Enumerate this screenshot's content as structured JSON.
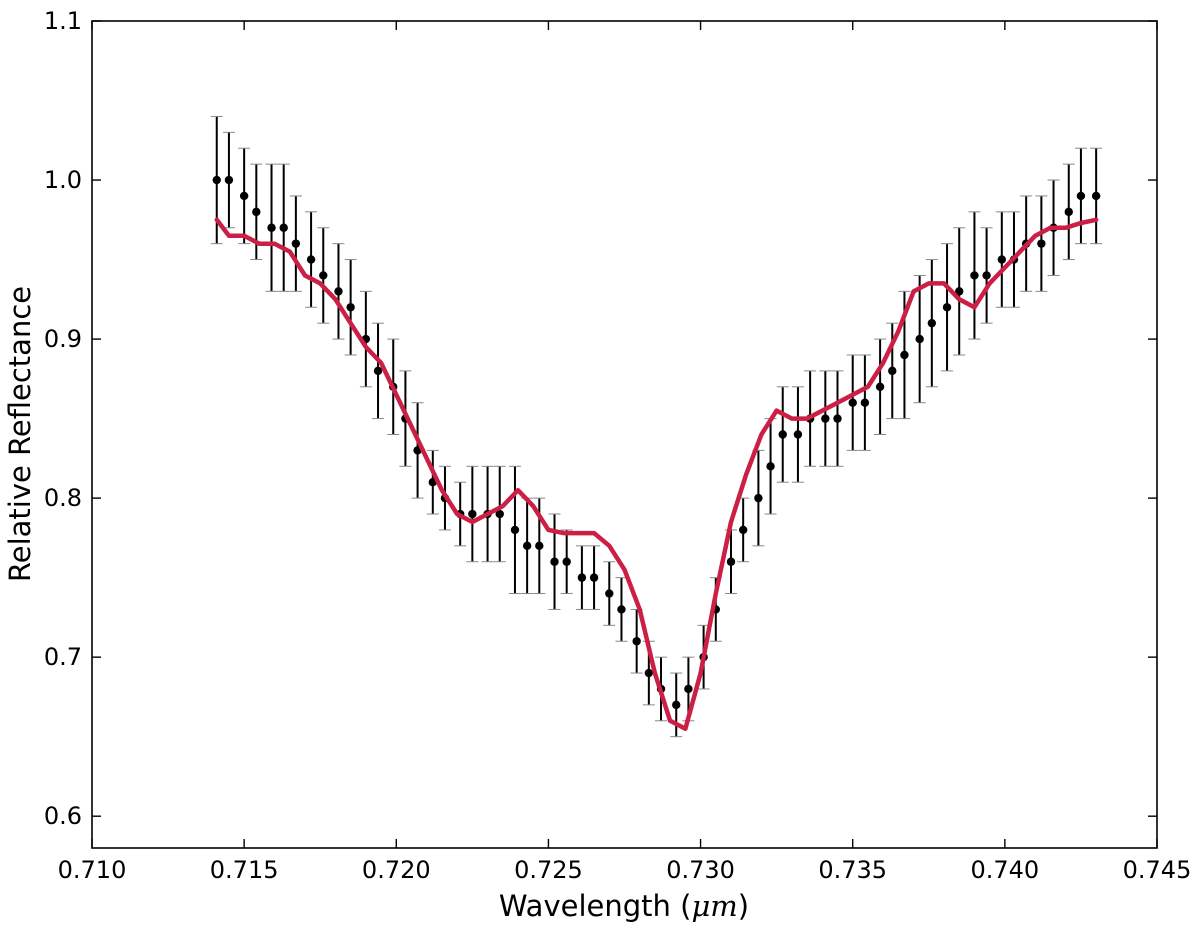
{
  "chart_data": {
    "type": "scatter",
    "title": "",
    "xlabel": "Wavelength (",
    "xlabel_unit": "μm",
    "xlabel_close": ")",
    "ylabel": "Relative Reflectance",
    "xlim": [
      0.71,
      0.745
    ],
    "ylim": [
      0.58,
      1.1
    ],
    "x_ticks": [
      0.71,
      0.715,
      0.72,
      0.725,
      0.73,
      0.735,
      0.74,
      0.745
    ],
    "x_tick_labels": [
      "0.710",
      "0.715",
      "0.720",
      "0.725",
      "0.730",
      "0.735",
      "0.740",
      "0.745"
    ],
    "y_ticks": [
      0.6,
      0.7,
      0.8,
      0.9,
      1.0,
      1.1
    ],
    "y_tick_labels": [
      "0.6",
      "0.7",
      "0.8",
      "0.9",
      "1.0",
      "1.1"
    ],
    "grid": false,
    "legend": "none",
    "series": [
      {
        "kind": "points-with-error-bars",
        "color": "#000000",
        "x": [
          0.7141,
          0.7145,
          0.715,
          0.7154,
          0.7159,
          0.7163,
          0.7167,
          0.7172,
          0.7176,
          0.7181,
          0.7185,
          0.719,
          0.7194,
          0.7199,
          0.7203,
          0.7207,
          0.7212,
          0.7216,
          0.7221,
          0.7225,
          0.723,
          0.7234,
          0.7239,
          0.7243,
          0.7247,
          0.7252,
          0.7256,
          0.7261,
          0.7265,
          0.727,
          0.7274,
          0.7279,
          0.7283,
          0.7287,
          0.7292,
          0.7296,
          0.7301,
          0.7305,
          0.731,
          0.7314,
          0.7319,
          0.7323,
          0.7327,
          0.7332,
          0.7336,
          0.7341,
          0.7345,
          0.735,
          0.7354,
          0.7359,
          0.7363,
          0.7367,
          0.7372,
          0.7376,
          0.7381,
          0.7385,
          0.739,
          0.7394,
          0.7399,
          0.7403,
          0.7407,
          0.7412,
          0.7416,
          0.7421,
          0.7425,
          0.743
        ],
        "y": [
          1.0,
          1.0,
          0.99,
          0.98,
          0.97,
          0.97,
          0.96,
          0.95,
          0.94,
          0.93,
          0.92,
          0.9,
          0.88,
          0.87,
          0.85,
          0.83,
          0.81,
          0.8,
          0.79,
          0.79,
          0.79,
          0.79,
          0.78,
          0.77,
          0.77,
          0.76,
          0.76,
          0.75,
          0.75,
          0.74,
          0.73,
          0.71,
          0.69,
          0.68,
          0.67,
          0.68,
          0.7,
          0.73,
          0.76,
          0.78,
          0.8,
          0.82,
          0.84,
          0.84,
          0.85,
          0.85,
          0.85,
          0.86,
          0.86,
          0.87,
          0.88,
          0.89,
          0.9,
          0.91,
          0.92,
          0.93,
          0.94,
          0.94,
          0.95,
          0.95,
          0.96,
          0.96,
          0.97,
          0.98,
          0.99,
          0.99
        ],
        "err": [
          0.04,
          0.03,
          0.03,
          0.03,
          0.04,
          0.04,
          0.03,
          0.03,
          0.03,
          0.03,
          0.03,
          0.03,
          0.03,
          0.03,
          0.03,
          0.03,
          0.02,
          0.02,
          0.02,
          0.03,
          0.03,
          0.03,
          0.04,
          0.03,
          0.03,
          0.03,
          0.02,
          0.02,
          0.02,
          0.02,
          0.02,
          0.02,
          0.02,
          0.02,
          0.02,
          0.02,
          0.02,
          0.02,
          0.02,
          0.02,
          0.03,
          0.03,
          0.03,
          0.03,
          0.03,
          0.03,
          0.03,
          0.03,
          0.03,
          0.03,
          0.03,
          0.04,
          0.04,
          0.04,
          0.04,
          0.04,
          0.04,
          0.03,
          0.03,
          0.03,
          0.03,
          0.03,
          0.03,
          0.03,
          0.03,
          0.03
        ]
      },
      {
        "kind": "model-line",
        "color": "#cc1f45",
        "x": [
          0.7141,
          0.7145,
          0.715,
          0.7155,
          0.716,
          0.7165,
          0.717,
          0.7175,
          0.718,
          0.7185,
          0.719,
          0.7195,
          0.72,
          0.7205,
          0.721,
          0.7215,
          0.722,
          0.7225,
          0.723,
          0.7235,
          0.724,
          0.7245,
          0.725,
          0.7255,
          0.726,
          0.7265,
          0.727,
          0.7275,
          0.728,
          0.7285,
          0.729,
          0.7295,
          0.73,
          0.7305,
          0.731,
          0.7315,
          0.732,
          0.7325,
          0.733,
          0.7335,
          0.734,
          0.7345,
          0.735,
          0.7355,
          0.736,
          0.7365,
          0.737,
          0.7375,
          0.738,
          0.7385,
          0.739,
          0.7395,
          0.74,
          0.7405,
          0.741,
          0.7415,
          0.742,
          0.7425,
          0.743
        ],
        "y": [
          0.975,
          0.965,
          0.965,
          0.96,
          0.96,
          0.955,
          0.94,
          0.935,
          0.925,
          0.91,
          0.895,
          0.885,
          0.865,
          0.845,
          0.825,
          0.805,
          0.79,
          0.785,
          0.79,
          0.795,
          0.805,
          0.795,
          0.78,
          0.778,
          0.778,
          0.778,
          0.77,
          0.755,
          0.73,
          0.69,
          0.66,
          0.655,
          0.69,
          0.74,
          0.785,
          0.815,
          0.84,
          0.855,
          0.85,
          0.85,
          0.855,
          0.86,
          0.865,
          0.87,
          0.885,
          0.905,
          0.93,
          0.935,
          0.935,
          0.925,
          0.92,
          0.935,
          0.945,
          0.955,
          0.965,
          0.97,
          0.97,
          0.973,
          0.975
        ]
      }
    ]
  }
}
